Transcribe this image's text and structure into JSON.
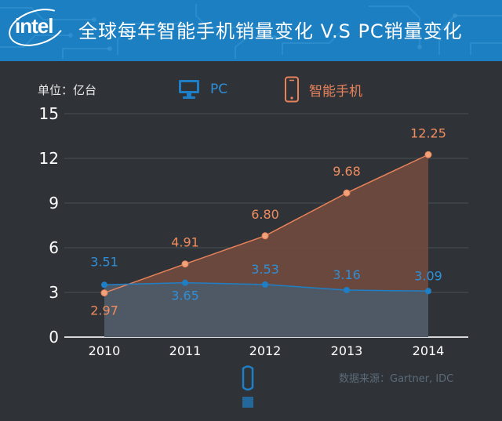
{
  "header": {
    "logo_text": "intel",
    "title": "全球每年智能手机销量变化 V.S PC销量变化"
  },
  "unit_label": "单位：亿台",
  "legend": [
    {
      "name": "PC",
      "icon": "monitor-icon",
      "color": "#1f7fc6"
    },
    {
      "name": "智能手机",
      "icon": "smartphone-icon",
      "color": "#e8825a"
    }
  ],
  "source": "数据来源：Gartner, IDC",
  "chart_data": {
    "type": "area",
    "title": "全球每年智能手机销量变化 V.S PC销量变化",
    "ylabel": "单位：亿台",
    "xlabel": "",
    "categories": [
      "2010",
      "2011",
      "2012",
      "2013",
      "2014"
    ],
    "y_ticks": [
      "0",
      "3",
      "6",
      "9",
      "12",
      "15"
    ],
    "ylim": [
      0,
      15
    ],
    "series": [
      {
        "name": "PC",
        "values": [
          3.51,
          3.65,
          3.53,
          3.16,
          3.09
        ],
        "labels": [
          "3.51",
          "3.65",
          "3.53",
          "3.16",
          "3.09"
        ],
        "color": "#1f7fc6"
      },
      {
        "name": "智能手机",
        "values": [
          2.97,
          4.91,
          6.8,
          9.68,
          12.25
        ],
        "labels": [
          "2.97",
          "4.91",
          "6.80",
          "9.68",
          "12.25"
        ],
        "color": "#e8825a"
      }
    ]
  }
}
